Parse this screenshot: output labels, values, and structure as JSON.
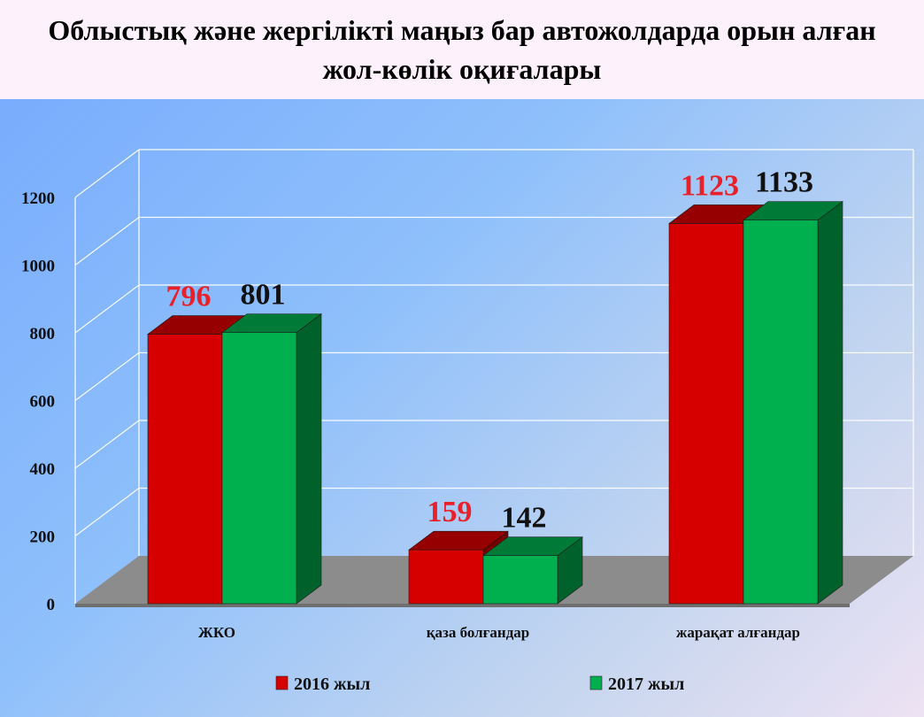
{
  "title": "Облыстық және жергілікті маңыз бар автожолдарда орын алған жол-көлік оқиғалары",
  "colors": {
    "series_2016": "#d60000",
    "series_2016_label": "#e8202a",
    "series_2017": "#00b04f",
    "series_2017_label": "#111111"
  },
  "chart_data": {
    "type": "bar",
    "title": "Облыстық және жергілікті маңыз бар автожолдарда орын алған жол-көлік оқиғалары",
    "categories": [
      "ЖКО",
      "қаза болғандар",
      "жарақат алғандар"
    ],
    "series": [
      {
        "name": "2016 жыл",
        "values": [
          796,
          159,
          1123
        ]
      },
      {
        "name": "2017 жыл",
        "values": [
          801,
          142,
          1133
        ]
      }
    ],
    "data_labels": [
      [
        "796",
        "801"
      ],
      [
        "159",
        "142"
      ],
      [
        "1123",
        "1133"
      ]
    ],
    "y_ticks": [
      "0",
      "200",
      "400",
      "600",
      "800",
      "1000",
      "1200"
    ],
    "ylim": [
      0,
      1200
    ],
    "xlabel": "",
    "ylabel": "",
    "grid": true,
    "three_d": true,
    "legend_position": "bottom"
  }
}
